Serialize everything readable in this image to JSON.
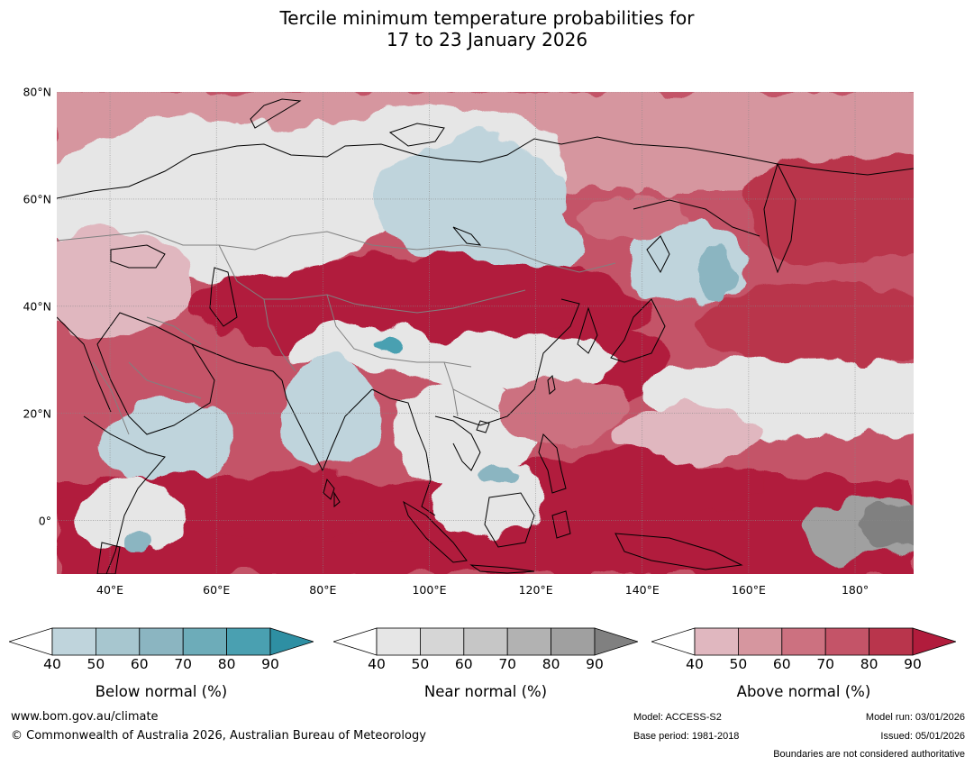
{
  "title": {
    "line1": "Tercile minimum temperature probabilities for",
    "line2": "17 to 23 January 2026"
  },
  "map": {
    "lat_ticks": [
      {
        "value": 80,
        "label": "80°N"
      },
      {
        "value": 60,
        "label": "60°N"
      },
      {
        "value": 40,
        "label": "40°N"
      },
      {
        "value": 20,
        "label": "20°N"
      },
      {
        "value": 0,
        "label": "0°"
      }
    ],
    "lon_ticks": [
      {
        "value": 40,
        "label": "40°E"
      },
      {
        "value": 60,
        "label": "60°E"
      },
      {
        "value": 80,
        "label": "80°E"
      },
      {
        "value": 100,
        "label": "100°E"
      },
      {
        "value": 120,
        "label": "120°E"
      },
      {
        "value": 140,
        "label": "140°E"
      },
      {
        "value": 160,
        "label": "160°E"
      },
      {
        "value": 180,
        "label": "180°"
      }
    ],
    "extent": {
      "lon_min": 30,
      "lon_max": 191,
      "lat_min": -10,
      "lat_max": 80
    },
    "colors": {
      "land_outline": "#000000",
      "border": "#808080",
      "grid": "#888888"
    }
  },
  "legends": [
    {
      "key": "below",
      "title": "Below normal (%)",
      "ticks": [
        "40",
        "50",
        "60",
        "70",
        "80",
        "90"
      ],
      "colors": [
        "#ffffff",
        "#bfd4dc",
        "#a7c6cf",
        "#8bb5c1",
        "#6dacb9",
        "#4aa0b1",
        "#2e8fa3"
      ]
    },
    {
      "key": "near",
      "title": "Near normal (%)",
      "ticks": [
        "40",
        "50",
        "60",
        "70",
        "80",
        "90"
      ],
      "colors": [
        "#ffffff",
        "#e6e6e6",
        "#d6d6d6",
        "#c6c6c6",
        "#b2b2b2",
        "#a0a0a0",
        "#808080"
      ]
    },
    {
      "key": "above",
      "title": "Above normal (%)",
      "ticks": [
        "40",
        "50",
        "60",
        "70",
        "80",
        "90"
      ],
      "colors": [
        "#ffffff",
        "#e0b7bf",
        "#d6969f",
        "#cc7180",
        "#c45468",
        "#b9354c",
        "#b11c3c"
      ]
    }
  ],
  "footer": {
    "website": "www.bom.gov.au/climate",
    "copyright": "© Commonwealth of Australia 2026, Australian Bureau of Meteorology",
    "model": "Model: ACCESS-S2",
    "base_period": "Base period: 1981-2018",
    "model_run": "Model run: 03/01/2026",
    "issued": "Issued: 05/01/2026",
    "disclaimer": "Boundaries are not considered authoritative"
  }
}
